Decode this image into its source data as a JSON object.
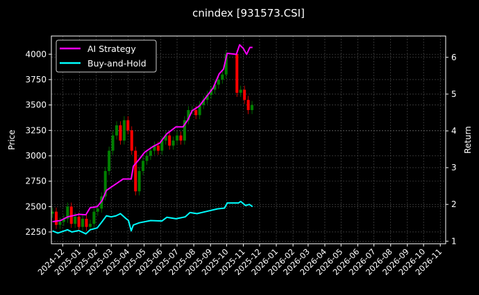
{
  "chart_data": {
    "type": "line",
    "title": "cnindex [931573.CSI]",
    "ylabel": "Price",
    "y2label": "Return",
    "xlim": [
      "2024-11-10",
      "2026-11-11"
    ],
    "ylim": [
      2134,
      4179
    ],
    "y2lim": [
      0.93,
      6.58
    ],
    "grid": true,
    "legend_position": "top-left",
    "background": "#000000",
    "x_ticks": [
      "2024-12",
      "2025-01",
      "2025-02",
      "2025-03",
      "2025-04",
      "2025-05",
      "2025-06",
      "2025-07",
      "2025-08",
      "2025-09",
      "2025-10",
      "2025-11",
      "2025-12",
      "2026-01",
      "2026-02",
      "2026-03",
      "2026-04",
      "2026-05",
      "2026-06",
      "2026-07",
      "2026-08",
      "2026-09",
      "2026-10",
      "2026-11"
    ],
    "y_ticks": [
      2250,
      2500,
      2750,
      3000,
      3250,
      3500,
      3750,
      4000
    ],
    "y2_ticks": [
      1,
      2,
      3,
      4,
      5,
      6
    ],
    "candles": {
      "up_color": "#008000",
      "down_color": "#ff0000",
      "dates": [
        "2024-11-12",
        "2024-11-19",
        "2024-11-26",
        "2024-12-03",
        "2024-12-10",
        "2024-12-17",
        "2024-12-24",
        "2024-12-31",
        "2025-01-07",
        "2025-01-14",
        "2025-01-21",
        "2025-01-28",
        "2025-02-04",
        "2025-02-11",
        "2025-02-18",
        "2025-02-25",
        "2025-03-04",
        "2025-03-11",
        "2025-03-18",
        "2025-03-25",
        "2025-04-01",
        "2025-04-08",
        "2025-04-15",
        "2025-04-22",
        "2025-04-29",
        "2025-05-06",
        "2025-05-13",
        "2025-05-20",
        "2025-05-27",
        "2025-06-03",
        "2025-06-10",
        "2025-06-17",
        "2025-06-24",
        "2025-07-01",
        "2025-07-08",
        "2025-07-15",
        "2025-07-22",
        "2025-07-29",
        "2025-08-05",
        "2025-08-12",
        "2025-08-19",
        "2025-08-26",
        "2025-09-02",
        "2025-09-09",
        "2025-09-16",
        "2025-09-23",
        "2025-09-30",
        "2025-10-20",
        "2025-10-27",
        "2025-11-03",
        "2025-11-10",
        "2025-11-17"
      ],
      "close": [
        2450,
        2320,
        2350,
        2380,
        2500,
        2330,
        2400,
        2300,
        2380,
        2300,
        2330,
        2450,
        2480,
        2600,
        2850,
        3050,
        3200,
        3300,
        3150,
        3350,
        3250,
        3050,
        2650,
        2850,
        2950,
        3000,
        3050,
        3100,
        3050,
        3150,
        3200,
        3100,
        3150,
        3200,
        3150,
        3350,
        3450,
        3450,
        3400,
        3500,
        3550,
        3600,
        3650,
        3700,
        3750,
        3800,
        4000,
        3620,
        3650,
        3550,
        3450,
        3500
      ]
    },
    "series": [
      {
        "name": "AI Strategy",
        "axis": "right",
        "color": "#ff00ff",
        "x": [
          "2024-11-12",
          "2024-11-27",
          "2024-12-10",
          "2024-12-31",
          "2025-01-13",
          "2025-01-21",
          "2025-02-03",
          "2025-02-12",
          "2025-02-20",
          "2025-03-01",
          "2025-03-14",
          "2025-03-23",
          "2025-04-07",
          "2025-04-11",
          "2025-04-22",
          "2025-05-02",
          "2025-05-17",
          "2025-05-30",
          "2025-06-12",
          "2025-06-29",
          "2025-07-12",
          "2025-07-21",
          "2025-07-29",
          "2025-08-11",
          "2025-08-24",
          "2025-09-06",
          "2025-09-17",
          "2025-09-25",
          "2025-10-02",
          "2025-10-19",
          "2025-10-25",
          "2025-11-01",
          "2025-11-07",
          "2025-11-13",
          "2025-11-18"
        ],
        "values": [
          1.53,
          1.56,
          1.66,
          1.73,
          1.72,
          1.91,
          1.94,
          2.1,
          2.38,
          2.47,
          2.6,
          2.69,
          2.69,
          3.04,
          3.23,
          3.42,
          3.57,
          3.67,
          3.92,
          4.11,
          4.11,
          4.3,
          4.55,
          4.67,
          4.92,
          5.17,
          5.55,
          5.68,
          6.11,
          6.08,
          6.34,
          6.24,
          6.08,
          6.27,
          6.27
        ]
      },
      {
        "name": "Buy-and-Hold",
        "axis": "right",
        "color": "#00ffff",
        "x": [
          "2024-11-12",
          "2024-11-22",
          "2024-12-10",
          "2024-12-18",
          "2024-12-31",
          "2025-01-13",
          "2025-01-21",
          "2025-02-03",
          "2025-02-12",
          "2025-02-20",
          "2025-03-01",
          "2025-03-10",
          "2025-03-18",
          "2025-03-27",
          "2025-04-02",
          "2025-04-07",
          "2025-04-11",
          "2025-04-22",
          "2025-05-13",
          "2025-06-03",
          "2025-06-12",
          "2025-06-29",
          "2025-07-16",
          "2025-07-25",
          "2025-08-07",
          "2025-08-28",
          "2025-09-14",
          "2025-09-27",
          "2025-10-02",
          "2025-10-23",
          "2025-10-27",
          "2025-11-05",
          "2025-11-12",
          "2025-11-18"
        ],
        "values": [
          1.28,
          1.22,
          1.31,
          1.25,
          1.29,
          1.2,
          1.31,
          1.36,
          1.53,
          1.69,
          1.66,
          1.69,
          1.75,
          1.63,
          1.56,
          1.28,
          1.44,
          1.5,
          1.56,
          1.55,
          1.65,
          1.61,
          1.66,
          1.78,
          1.75,
          1.82,
          1.88,
          1.9,
          2.04,
          2.04,
          2.08,
          1.97,
          2.0,
          1.94
        ]
      }
    ]
  }
}
